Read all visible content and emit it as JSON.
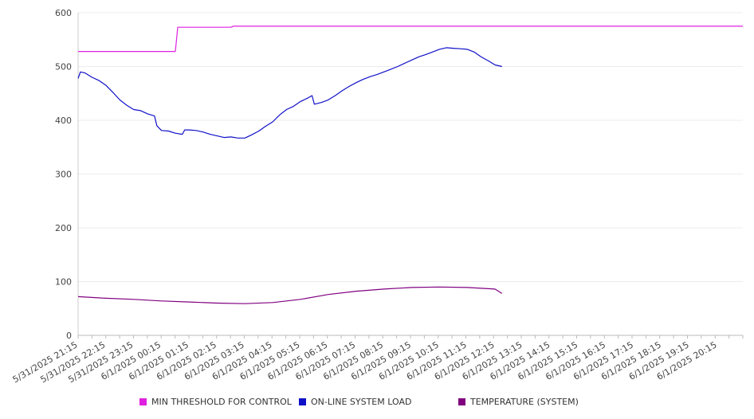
{
  "chart_data": {
    "type": "line",
    "title": "",
    "xlabel": "",
    "ylabel": "",
    "ylim": [
      0,
      600
    ],
    "y_ticks": [
      0,
      100,
      200,
      300,
      400,
      500,
      600
    ],
    "grid": true,
    "legend_position": "bottom",
    "x_tick_labels": [
      "5/31/2025 21:15",
      "5/31/2025 22:15",
      "5/31/2025 23:15",
      "6/1/2025 00:15",
      "6/1/2025 01:15",
      "6/1/2025 02:15",
      "6/1/2025 03:15",
      "6/1/2025 04:15",
      "6/1/2025 05:15",
      "6/1/2025 06:15",
      "6/1/2025 07:15",
      "6/1/2025 08:15",
      "6/1/2025 09:15",
      "6/1/2025 10:15",
      "6/1/2025 11:15",
      "6/1/2025 12:15",
      "6/1/2025 13:15",
      "6/1/2025 14:15",
      "6/1/2025 15:15",
      "6/1/2025 16:15",
      "6/1/2025 17:15",
      "6/1/2025 18:15",
      "6/1/2025 19:15",
      "6/1/2025 20:15"
    ],
    "x_range": [
      "5/31/2025 21:15",
      "6/1/2025 21:10"
    ],
    "series": [
      {
        "name": "MIN THRESHOLD FOR CONTROL",
        "color": "#e020e0",
        "points": [
          [
            "5/31/2025 21:15",
            528
          ],
          [
            "6/1/2025 00:45",
            528
          ],
          [
            "6/1/2025 00:50",
            573
          ],
          [
            "6/1/2025 02:45",
            573
          ],
          [
            "6/1/2025 02:50",
            575
          ],
          [
            "6/1/2025 21:10",
            575
          ]
        ]
      },
      {
        "name": "ON-LINE SYSTEM LOAD",
        "color": "#1010c8",
        "points": [
          [
            "5/31/2025 21:15",
            478
          ],
          [
            "5/31/2025 21:20",
            490
          ],
          [
            "5/31/2025 21:30",
            488
          ],
          [
            "5/31/2025 21:45",
            480
          ],
          [
            "5/31/2025 22:00",
            474
          ],
          [
            "5/31/2025 22:15",
            465
          ],
          [
            "5/31/2025 22:30",
            452
          ],
          [
            "5/31/2025 22:45",
            438
          ],
          [
            "5/31/2025 23:00",
            428
          ],
          [
            "5/31/2025 23:15",
            420
          ],
          [
            "5/31/2025 23:30",
            418
          ],
          [
            "5/31/2025 23:45",
            412
          ],
          [
            "6/1/2025 00:00",
            408
          ],
          [
            "6/1/2025 00:05",
            390
          ],
          [
            "6/1/2025 00:15",
            381
          ],
          [
            "6/1/2025 00:30",
            380
          ],
          [
            "6/1/2025 00:45",
            376
          ],
          [
            "6/1/2025 01:00",
            374
          ],
          [
            "6/1/2025 01:05",
            382
          ],
          [
            "6/1/2025 01:15",
            382
          ],
          [
            "6/1/2025 01:30",
            381
          ],
          [
            "6/1/2025 01:45",
            378
          ],
          [
            "6/1/2025 02:00",
            374
          ],
          [
            "6/1/2025 02:15",
            371
          ],
          [
            "6/1/2025 02:30",
            368
          ],
          [
            "6/1/2025 02:45",
            369
          ],
          [
            "6/1/2025 03:00",
            367
          ],
          [
            "6/1/2025 03:15",
            367
          ],
          [
            "6/1/2025 03:30",
            373
          ],
          [
            "6/1/2025 03:45",
            380
          ],
          [
            "6/1/2025 04:00",
            389
          ],
          [
            "6/1/2025 04:15",
            397
          ],
          [
            "6/1/2025 04:30",
            410
          ],
          [
            "6/1/2025 04:45",
            420
          ],
          [
            "6/1/2025 05:00",
            426
          ],
          [
            "6/1/2025 05:15",
            435
          ],
          [
            "6/1/2025 05:30",
            441
          ],
          [
            "6/1/2025 05:40",
            446
          ],
          [
            "6/1/2025 05:45",
            430
          ],
          [
            "6/1/2025 06:00",
            433
          ],
          [
            "6/1/2025 06:15",
            438
          ],
          [
            "6/1/2025 06:30",
            446
          ],
          [
            "6/1/2025 06:45",
            455
          ],
          [
            "6/1/2025 07:00",
            463
          ],
          [
            "6/1/2025 07:15",
            470
          ],
          [
            "6/1/2025 07:30",
            476
          ],
          [
            "6/1/2025 07:45",
            481
          ],
          [
            "6/1/2025 08:00",
            485
          ],
          [
            "6/1/2025 08:15",
            490
          ],
          [
            "6/1/2025 08:30",
            495
          ],
          [
            "6/1/2025 08:45",
            500
          ],
          [
            "6/1/2025 09:00",
            506
          ],
          [
            "6/1/2025 09:15",
            512
          ],
          [
            "6/1/2025 09:30",
            518
          ],
          [
            "6/1/2025 09:45",
            522
          ],
          [
            "6/1/2025 10:00",
            527
          ],
          [
            "6/1/2025 10:15",
            532
          ],
          [
            "6/1/2025 10:30",
            535
          ],
          [
            "6/1/2025 10:45",
            534
          ],
          [
            "6/1/2025 11:00",
            533
          ],
          [
            "6/1/2025 11:15",
            532
          ],
          [
            "6/1/2025 11:30",
            527
          ],
          [
            "6/1/2025 11:45",
            518
          ],
          [
            "6/1/2025 12:00",
            511
          ],
          [
            "6/1/2025 12:15",
            503
          ],
          [
            "6/1/2025 12:30",
            500
          ]
        ]
      },
      {
        "name": "TEMPERATURE (SYSTEM)",
        "color": "#800080",
        "points": [
          [
            "5/31/2025 21:15",
            72
          ],
          [
            "5/31/2025 22:15",
            69
          ],
          [
            "5/31/2025 23:15",
            67
          ],
          [
            "6/1/2025 00:15",
            64
          ],
          [
            "6/1/2025 01:15",
            62
          ],
          [
            "6/1/2025 02:15",
            60
          ],
          [
            "6/1/2025 03:15",
            59
          ],
          [
            "6/1/2025 04:15",
            61
          ],
          [
            "6/1/2025 05:15",
            67
          ],
          [
            "6/1/2025 06:15",
            76
          ],
          [
            "6/1/2025 07:15",
            82
          ],
          [
            "6/1/2025 08:15",
            86
          ],
          [
            "6/1/2025 09:15",
            89
          ],
          [
            "6/1/2025 10:15",
            90
          ],
          [
            "6/1/2025 11:15",
            89
          ],
          [
            "6/1/2025 12:15",
            86
          ],
          [
            "6/1/2025 12:30",
            78
          ]
        ]
      }
    ]
  }
}
